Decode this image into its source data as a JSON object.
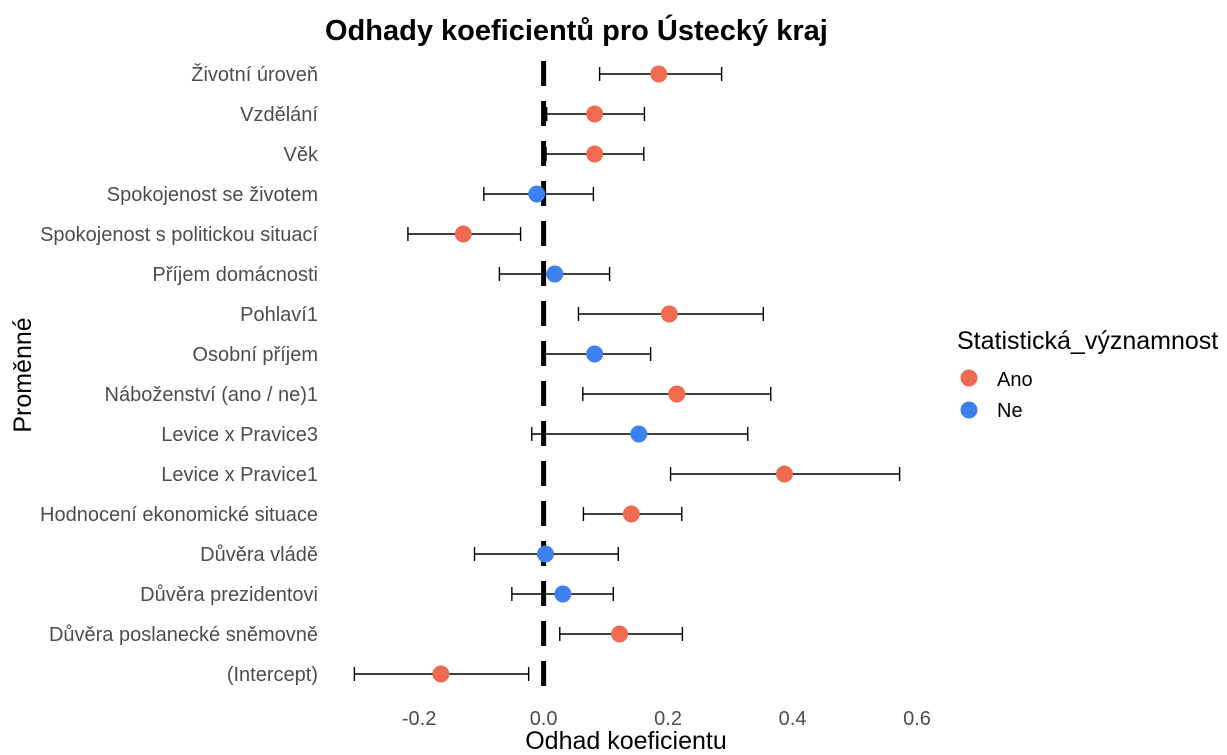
{
  "chart_data": {
    "type": "scatter",
    "error_bars": true,
    "title": "Odhady koeficientů pro Ústecký kraj",
    "xlabel": "Odhad koeficientu",
    "ylabel": "Proměnné",
    "xlim": [
      -0.348,
      0.616
    ],
    "xticks": [
      -0.2,
      0.0,
      0.2,
      0.4,
      0.6
    ],
    "xtick_labels": [
      "-0.2",
      "0.0",
      "0.2",
      "0.4",
      "0.6"
    ],
    "grid": false,
    "reference_line": {
      "x": 0.0,
      "style": "dashed",
      "color": "#000000"
    },
    "legend": {
      "title": "Statistická_významnost",
      "placement": "right",
      "entries": [
        {
          "label": "Ano",
          "significant": true,
          "color": "#EF6A50"
        },
        {
          "label": "Ne",
          "significant": false,
          "color": "#3B82F0"
        }
      ]
    },
    "points": [
      {
        "label": "Životní úroveň",
        "estimate": 0.185,
        "ci_low": 0.09,
        "ci_high": 0.286,
        "significant": true
      },
      {
        "label": "Vzdělání",
        "estimate": 0.082,
        "ci_low": 0.005,
        "ci_high": 0.162,
        "significant": true
      },
      {
        "label": "Věk",
        "estimate": 0.082,
        "ci_low": 0.004,
        "ci_high": 0.161,
        "significant": true
      },
      {
        "label": "Spokojenost se životem",
        "estimate": -0.011,
        "ci_low": -0.096,
        "ci_high": 0.08,
        "significant": false
      },
      {
        "label": "Spokojenost s politickou situací",
        "estimate": -0.129,
        "ci_low": -0.218,
        "ci_high": -0.037,
        "significant": true
      },
      {
        "label": "Příjem domácnosti",
        "estimate": 0.018,
        "ci_low": -0.071,
        "ci_high": 0.106,
        "significant": false
      },
      {
        "label": "Pohlaví1",
        "estimate": 0.202,
        "ci_low": 0.056,
        "ci_high": 0.353,
        "significant": true
      },
      {
        "label": "Osobní příjem",
        "estimate": 0.082,
        "ci_low": -0.002,
        "ci_high": 0.172,
        "significant": false
      },
      {
        "label": "Náboženství (ano / ne)1",
        "estimate": 0.214,
        "ci_low": 0.063,
        "ci_high": 0.365,
        "significant": true
      },
      {
        "label": "Levice x Pravice3",
        "estimate": 0.153,
        "ci_low": -0.019,
        "ci_high": 0.328,
        "significant": false
      },
      {
        "label": "Levice x Pravice1",
        "estimate": 0.387,
        "ci_low": 0.204,
        "ci_high": 0.572,
        "significant": true
      },
      {
        "label": "Hodnocení ekonomické situace",
        "estimate": 0.141,
        "ci_low": 0.064,
        "ci_high": 0.222,
        "significant": true
      },
      {
        "label": "Důvěra vládě",
        "estimate": 0.003,
        "ci_low": -0.111,
        "ci_high": 0.12,
        "significant": false
      },
      {
        "label": "Důvěra prezidentovi",
        "estimate": 0.031,
        "ci_low": -0.051,
        "ci_high": 0.112,
        "significant": false
      },
      {
        "label": "Důvěra poslanecké sněmovně",
        "estimate": 0.122,
        "ci_low": 0.026,
        "ci_high": 0.223,
        "significant": true
      },
      {
        "label": "(Intercept)",
        "estimate": -0.165,
        "ci_low": -0.304,
        "ci_high": -0.024,
        "significant": true
      }
    ]
  }
}
